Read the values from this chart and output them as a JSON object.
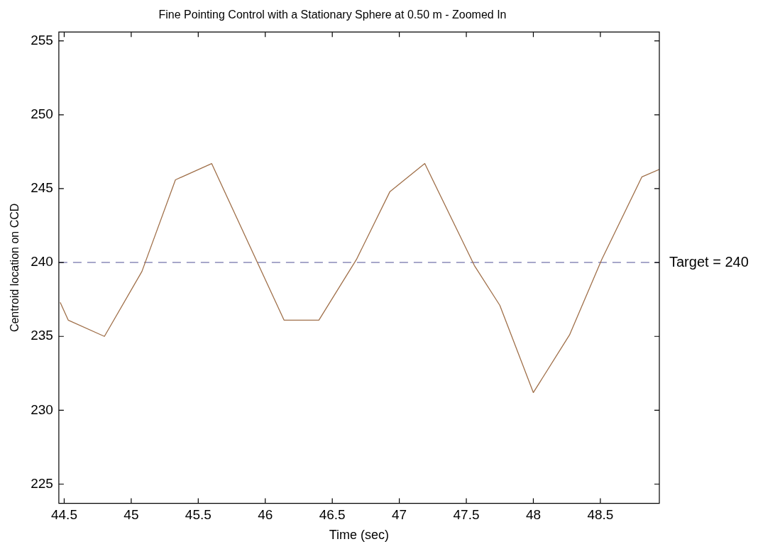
{
  "chart_data": {
    "type": "line",
    "title": "Fine Pointing Control with a Stationary Sphere at 0.50 m - Zoomed In",
    "xlabel": "Time (sec)",
    "ylabel": "Centroid location on CCD",
    "x": [
      44.47,
      44.53,
      44.8,
      45.08,
      45.33,
      45.6,
      46.14,
      46.4,
      46.68,
      46.93,
      47.19,
      47.56,
      47.75,
      48.0,
      48.27,
      48.51,
      48.81,
      48.94
    ],
    "series": [
      {
        "color": "#a0704a",
        "values": [
          237.3,
          236.1,
          235.0,
          239.4,
          245.6,
          246.7,
          236.1,
          236.1,
          240.2,
          244.8,
          246.7,
          239.8,
          237.1,
          231.2,
          235.1,
          240.2,
          245.8,
          246.3
        ]
      }
    ],
    "xlim": [
      44.46,
      48.94
    ],
    "xticks": [
      44.5,
      45,
      45.5,
      46,
      46.5,
      47,
      47.5,
      48,
      48.5
    ],
    "ylim": [
      223.7,
      255.6
    ],
    "yticks": [
      225,
      230,
      235,
      240,
      245,
      250,
      255
    ],
    "ref_lines": [
      {
        "axis": "y",
        "value": 240,
        "label": "Target = 240",
        "color": "#8a8ab8",
        "line_style": "dashed"
      }
    ],
    "grid": false,
    "legend": false,
    "marker": "none",
    "line_style": "solid"
  }
}
